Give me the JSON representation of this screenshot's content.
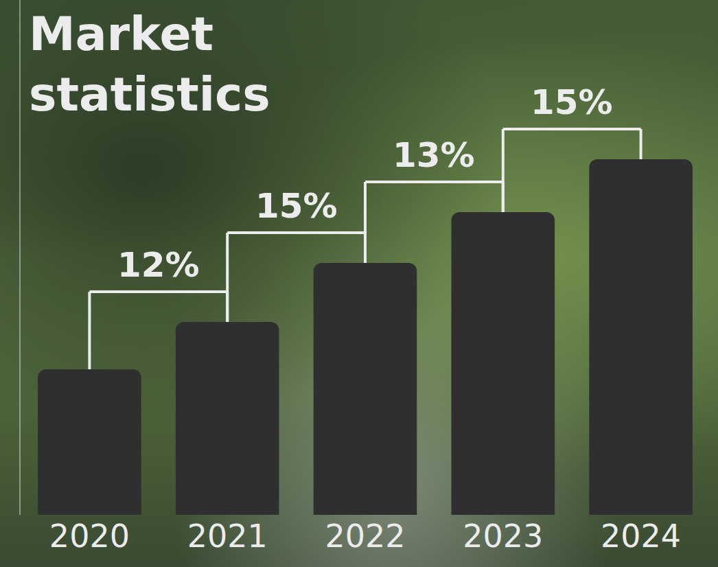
{
  "chart_data": {
    "type": "bar",
    "title": "Market statistics",
    "categories": [
      "2020",
      "2021",
      "2022",
      "2023",
      "2024"
    ],
    "values": [
      212,
      281,
      367,
      441,
      518
    ],
    "color": "#2f2f2f",
    "ylim": [
      0,
      750
    ],
    "tick_labels": "x",
    "grid": false,
    "annotations": [
      {
        "text": "12%",
        "between": [
          "2020",
          "2021"
        ]
      },
      {
        "text": "15%",
        "between": [
          "2021",
          "2022"
        ]
      },
      {
        "text": "13%",
        "between": [
          "2022",
          "2023"
        ]
      },
      {
        "text": "15%",
        "between": [
          "2023",
          "2024"
        ]
      }
    ]
  }
}
